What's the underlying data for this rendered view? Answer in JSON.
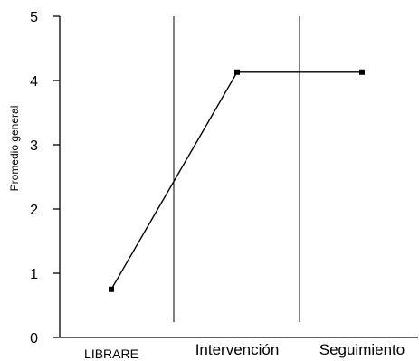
{
  "chart_data": {
    "type": "line",
    "title": "",
    "xlabel": "",
    "ylabel": "Promedio general",
    "ylim": [
      0,
      5
    ],
    "yticks": [
      0,
      1,
      2,
      3,
      4,
      5
    ],
    "phases": [
      "LIBRARE",
      "Intervención",
      "Seguimiento"
    ],
    "series": [
      {
        "values": [
          0.75,
          4.13,
          4.13
        ],
        "color": "#000000"
      }
    ],
    "grid": false,
    "legend": "none"
  }
}
